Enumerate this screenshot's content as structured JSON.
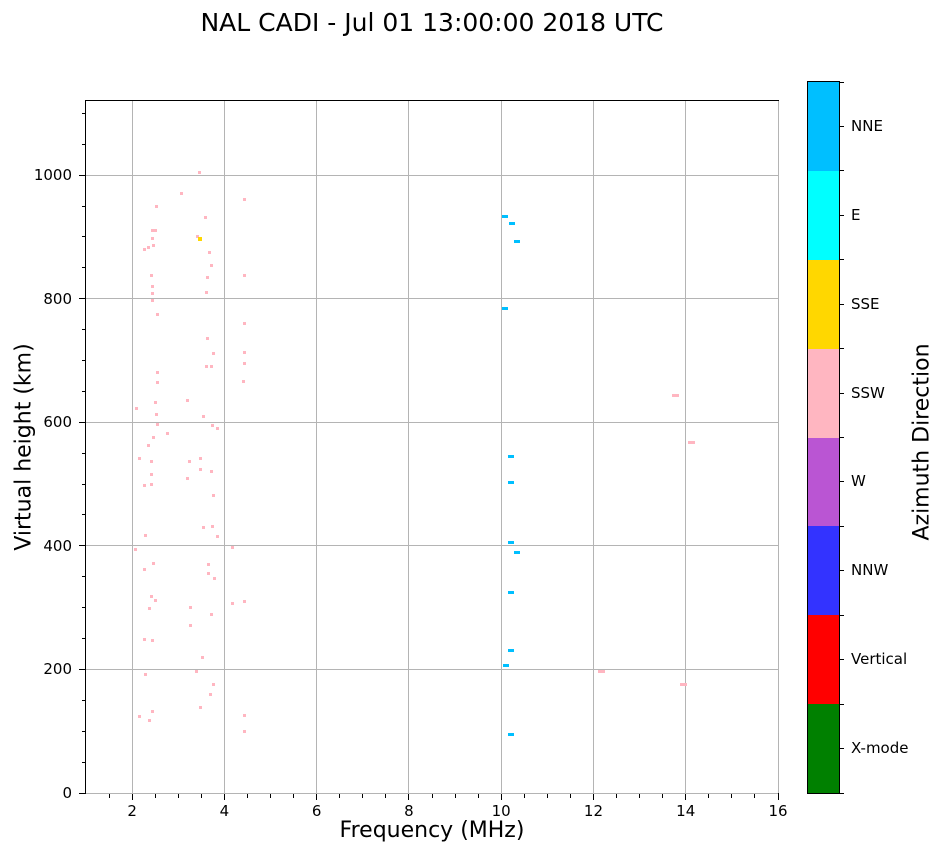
{
  "title": "NAL CADI - Jul 01 13:00:00 2018 UTC",
  "chart_data": {
    "type": "scatter",
    "title": "NAL CADI - Jul 01 13:00:00 2018 UTC",
    "xlabel": "Frequency (MHz)",
    "ylabel": "Virtual height (km)",
    "xlim": [
      1,
      16
    ],
    "ylim": [
      0,
      1120
    ],
    "x_ticks": [
      2,
      4,
      6,
      8,
      10,
      12,
      14,
      16
    ],
    "y_ticks": [
      0,
      200,
      400,
      600,
      800,
      1000
    ],
    "x_minor_ticks": [
      1.5,
      2.5,
      3,
      3.5,
      4.5,
      5,
      5.5,
      6.5,
      7,
      7.5,
      8.5,
      9,
      9.5,
      10.5,
      11,
      11.5,
      12.5,
      13,
      13.5,
      14.5,
      15,
      15.5
    ],
    "y_minor_ticks": [
      50,
      100,
      150,
      250,
      300,
      350,
      450,
      500,
      550,
      650,
      700,
      750,
      850,
      900,
      950,
      1050,
      1100
    ],
    "grid": true,
    "legend_position": "colorbar-right",
    "series": [
      {
        "name": "SSW-echoes",
        "azimuth": "SSW",
        "color": "#FFB6C1",
        "marker": {
          "w": 3,
          "h": 3
        },
        "points": [
          [
            3.47,
            1004
          ],
          [
            3.06,
            970
          ],
          [
            4.43,
            961
          ],
          [
            2.53,
            949
          ],
          [
            3.6,
            932
          ],
          [
            2.45,
            910
          ],
          [
            2.51,
            910
          ],
          [
            3.41,
            900
          ],
          [
            2.45,
            897
          ],
          [
            2.47,
            886
          ],
          [
            2.36,
            883
          ],
          [
            2.26,
            880
          ],
          [
            3.68,
            874
          ],
          [
            3.72,
            853
          ],
          [
            2.42,
            838
          ],
          [
            4.43,
            837
          ],
          [
            3.64,
            834
          ],
          [
            2.44,
            820
          ],
          [
            3.62,
            810
          ],
          [
            2.44,
            809
          ],
          [
            2.45,
            797
          ],
          [
            2.56,
            774
          ],
          [
            4.43,
            760
          ],
          [
            3.64,
            735
          ],
          [
            4.43,
            713
          ],
          [
            3.76,
            712
          ],
          [
            4.43,
            695
          ],
          [
            3.62,
            690
          ],
          [
            3.72,
            690
          ],
          [
            2.54,
            681
          ],
          [
            4.42,
            666
          ],
          [
            2.55,
            665
          ],
          [
            3.2,
            635
          ],
          [
            2.51,
            632
          ],
          [
            2.09,
            622
          ],
          [
            2.52,
            612
          ],
          [
            3.55,
            609
          ],
          [
            2.56,
            597
          ],
          [
            3.75,
            595
          ],
          [
            3.85,
            590
          ],
          [
            2.76,
            582
          ],
          [
            2.47,
            575
          ],
          [
            2.36,
            562
          ],
          [
            3.49,
            542
          ],
          [
            2.16,
            541
          ],
          [
            3.24,
            537
          ],
          [
            2.42,
            536
          ],
          [
            3.49,
            524
          ],
          [
            3.73,
            521
          ],
          [
            2.43,
            515
          ],
          [
            3.2,
            509
          ],
          [
            2.43,
            500
          ],
          [
            2.26,
            498
          ],
          [
            3.76,
            481
          ],
          [
            3.75,
            432
          ],
          [
            3.55,
            429
          ],
          [
            2.28,
            416
          ],
          [
            3.85,
            415
          ],
          [
            4.18,
            397
          ],
          [
            2.08,
            394
          ],
          [
            2.47,
            372
          ],
          [
            3.66,
            370
          ],
          [
            2.26,
            362
          ],
          [
            3.65,
            356
          ],
          [
            3.78,
            347
          ],
          [
            2.42,
            318
          ],
          [
            2.5,
            312
          ],
          [
            4.43,
            310
          ],
          [
            4.18,
            306
          ],
          [
            3.27,
            301
          ],
          [
            2.38,
            298
          ],
          [
            3.72,
            289
          ],
          [
            3.27,
            271
          ],
          [
            2.26,
            248
          ],
          [
            2.44,
            247
          ],
          [
            3.53,
            220
          ],
          [
            3.4,
            196
          ],
          [
            2.28,
            192
          ],
          [
            3.76,
            175
          ],
          [
            3.69,
            160
          ],
          [
            3.49,
            138
          ],
          [
            2.45,
            132
          ],
          [
            4.44,
            125
          ],
          [
            2.16,
            124
          ],
          [
            2.38,
            117
          ],
          [
            4.44,
            100
          ]
        ]
      },
      {
        "name": "SSW-dashes",
        "azimuth": "SSW",
        "color": "#FFB6C1",
        "marker": {
          "w": 7,
          "h": 3
        },
        "points": [
          [
            13.78,
            644
          ],
          [
            14.13,
            568
          ],
          [
            12.17,
            196
          ],
          [
            13.96,
            175
          ]
        ]
      },
      {
        "name": "SSE-echo",
        "azimuth": "SSE",
        "color": "#FFD700",
        "marker": {
          "w": 4,
          "h": 4
        },
        "points": [
          [
            3.47,
            897
          ]
        ]
      },
      {
        "name": "NNE-echoes",
        "azimuth": "NNE",
        "color": "#00BFFF",
        "marker": {
          "w": 6,
          "h": 3
        },
        "points": [
          [
            10.08,
            933
          ],
          [
            10.23,
            922
          ],
          [
            10.34,
            893
          ],
          [
            10.08,
            784
          ],
          [
            10.22,
            544
          ],
          [
            10.22,
            502
          ],
          [
            10.22,
            405
          ],
          [
            10.34,
            390
          ],
          [
            10.22,
            325
          ],
          [
            10.22,
            231
          ],
          [
            10.11,
            207
          ],
          [
            10.22,
            95
          ]
        ]
      }
    ]
  },
  "colorbar": {
    "label": "Azimuth Direction",
    "segments_top_to_bottom": [
      {
        "label": "NNE",
        "color": "#00BFFF"
      },
      {
        "label": "E",
        "color": "#00FFFF"
      },
      {
        "label": "SSE",
        "color": "#FFD700"
      },
      {
        "label": "SSW",
        "color": "#FFB6C1"
      },
      {
        "label": "W",
        "color": "#BA55D3"
      },
      {
        "label": "NNW",
        "color": "#3333FF"
      },
      {
        "label": "Vertical",
        "color": "#FF0000"
      },
      {
        "label": "X-mode",
        "color": "#008000"
      }
    ]
  }
}
